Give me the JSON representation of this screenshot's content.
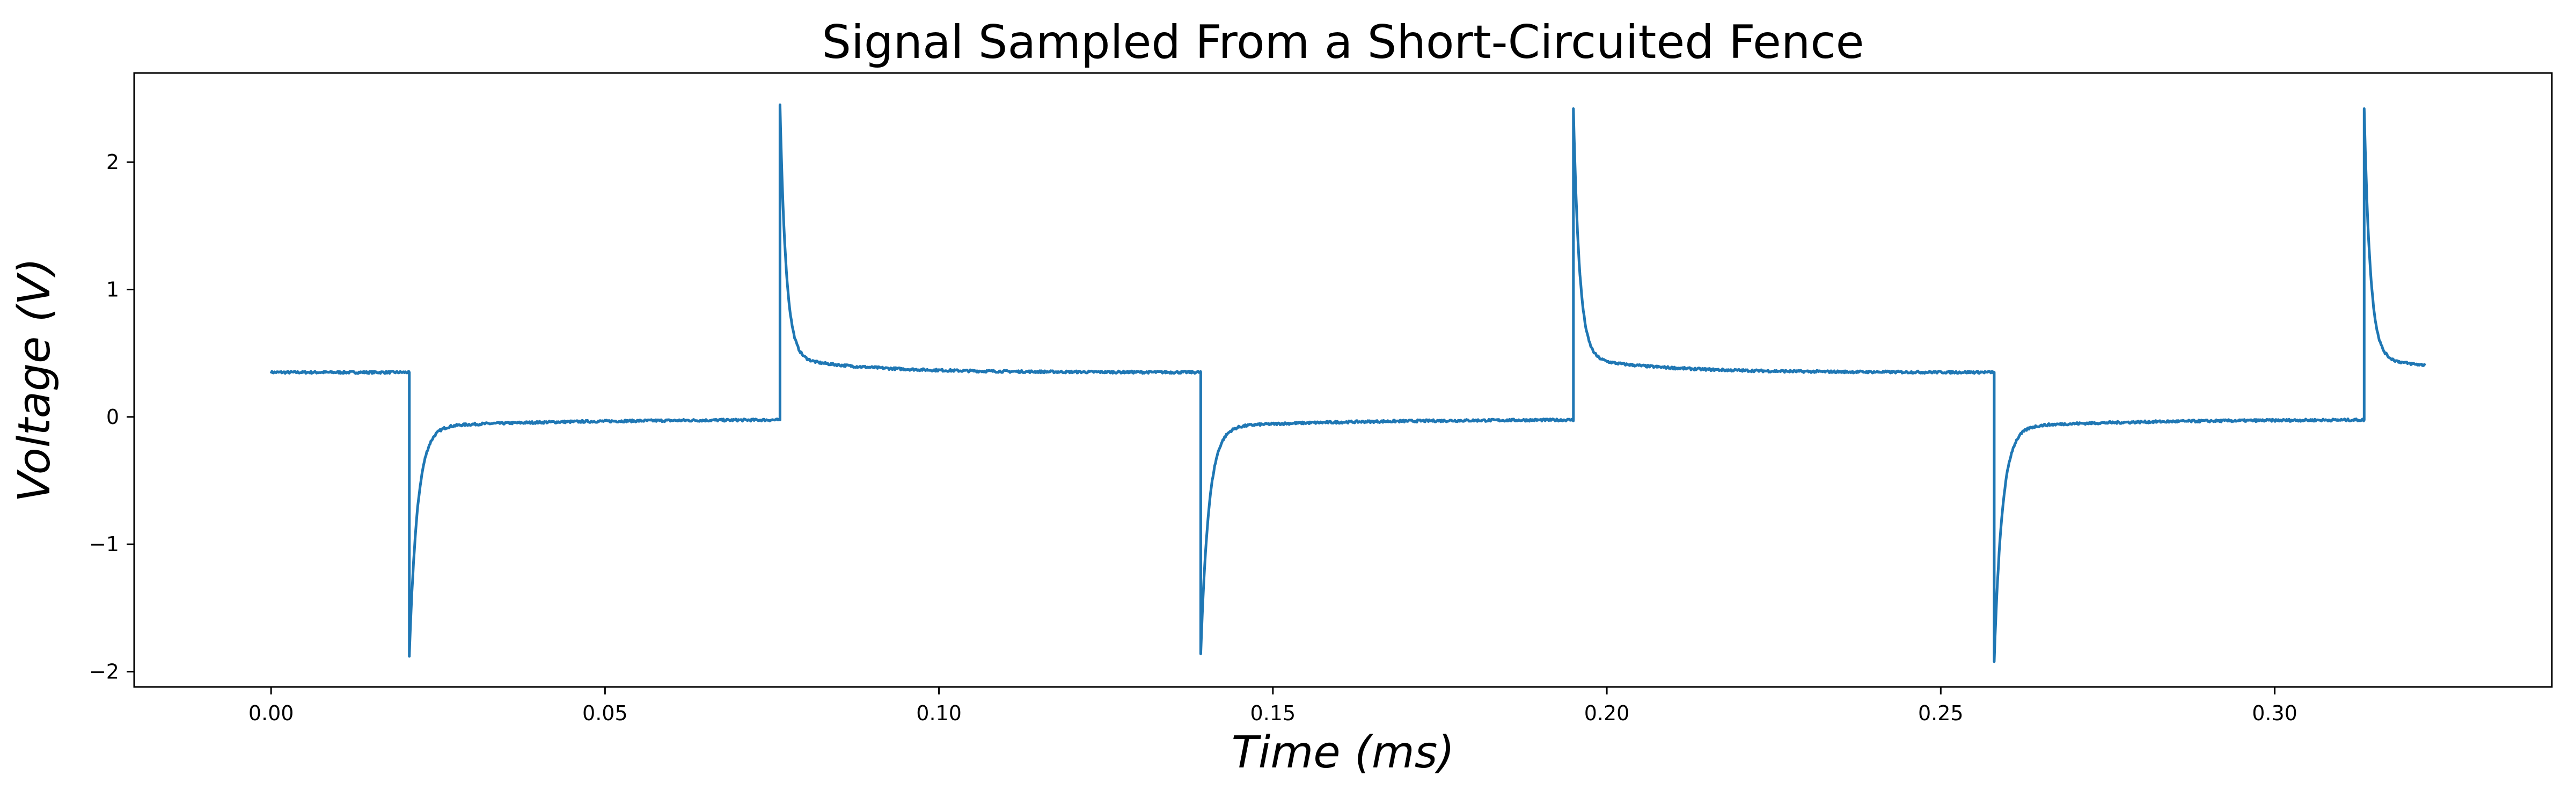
{
  "chart_data": {
    "type": "line",
    "title": "Signal Sampled From a Short-Circuited Fence",
    "xlabel": "Time (ms)",
    "ylabel": "Voltage (V)",
    "xlim": [
      -0.0205,
      0.3415
    ],
    "ylim": [
      -2.12,
      2.7
    ],
    "x_ticks": [
      0.0,
      0.05,
      0.1,
      0.15,
      0.2,
      0.25,
      0.3
    ],
    "x_tick_labels": [
      "0.00",
      "0.05",
      "0.10",
      "0.15",
      "0.20",
      "0.25",
      "0.30"
    ],
    "y_ticks": [
      -2,
      -1,
      0,
      1,
      2
    ],
    "y_tick_labels": [
      "−2",
      "−1",
      "0",
      "1",
      "2"
    ],
    "grid": false,
    "legend": "none",
    "series": [
      {
        "color": "#1f77b4",
        "x_range": [
          0.0,
          0.3225
        ],
        "period": 0.1187,
        "plateau_high": 0.35,
        "pulses": [
          {
            "fall_t": 0.0207,
            "min": -1.88,
            "rise_t": 0.0762,
            "max": 2.45
          },
          {
            "fall_t": 0.1392,
            "min": -1.86,
            "rise_t": 0.195,
            "max": 2.42
          },
          {
            "fall_t": 0.258,
            "min": -1.92,
            "rise_t": 0.3134,
            "max": 2.42
          }
        ],
        "end_value": 0.42
      }
    ]
  }
}
